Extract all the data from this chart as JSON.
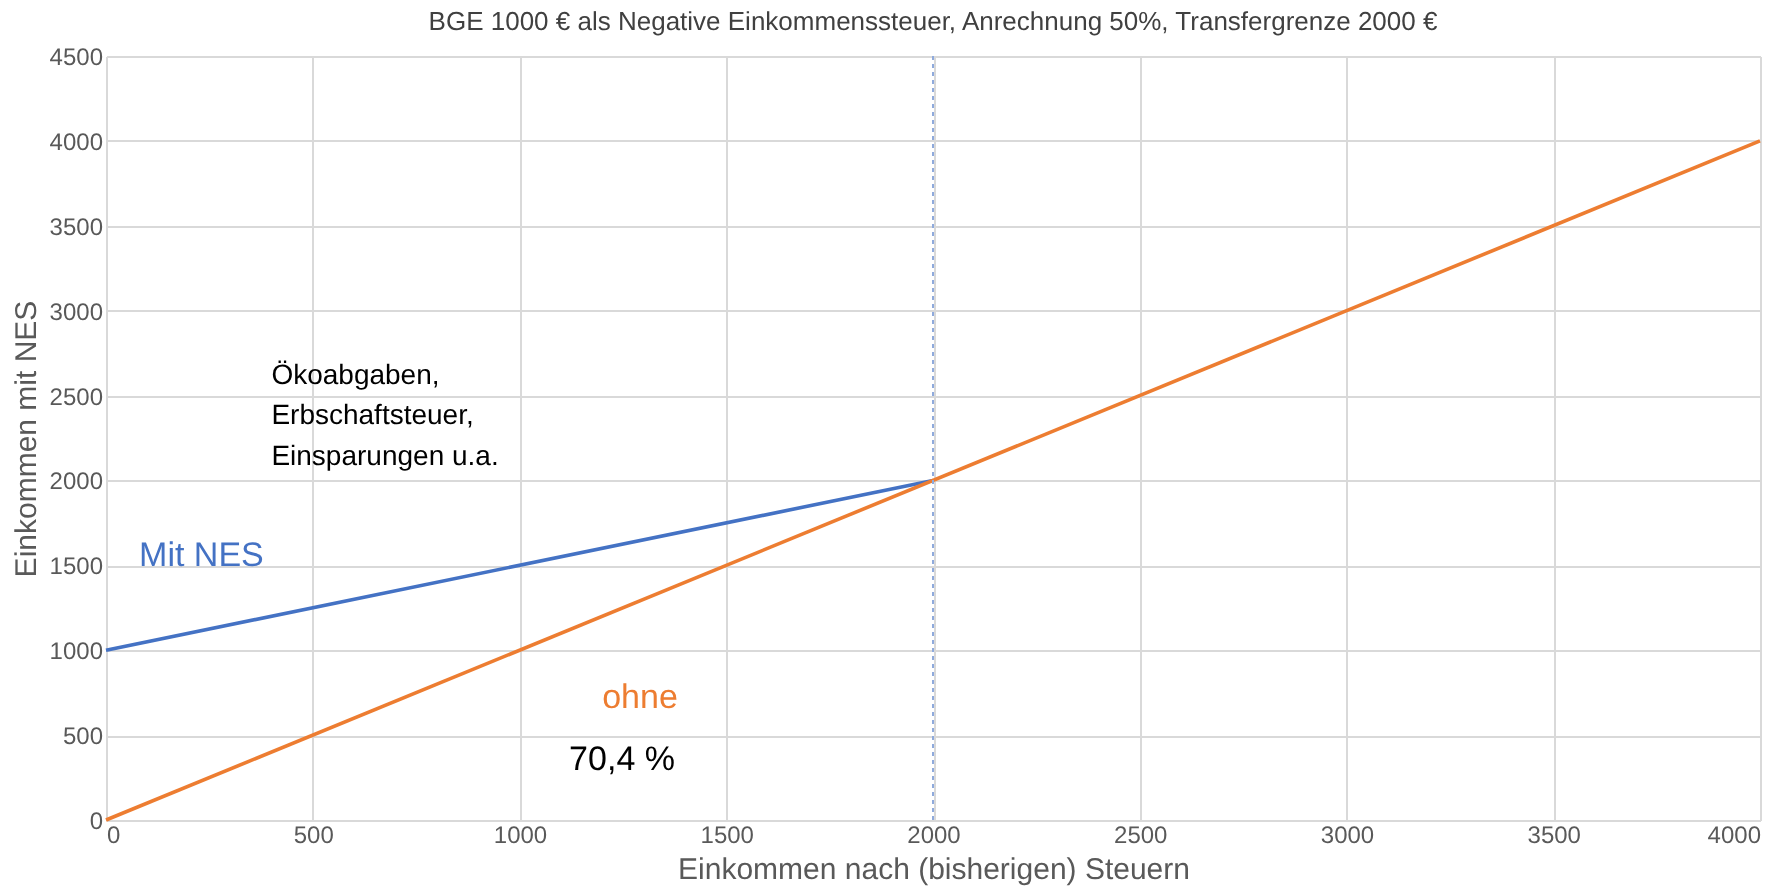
{
  "chart_data": {
    "type": "line",
    "title": "BGE 1000 € als Negative Einkommenssteuer,  Anrechnung 50%, Transfergrenze  2000 €",
    "xlabel": "Einkommen nach (bisherigen) Steuern",
    "ylabel": "Einkommen mit NES",
    "series": [
      {
        "name": "Mit NES",
        "color": "#4472c4",
        "x": [
          0,
          2000
        ],
        "values": [
          1000,
          2000
        ]
      },
      {
        "name": "ohne",
        "color": "#ed7d31",
        "x": [
          0,
          4000
        ],
        "values": [
          0,
          4000
        ]
      }
    ],
    "xlim": [
      0,
      4000
    ],
    "xticks": [
      0,
      500,
      1000,
      1500,
      2000,
      2500,
      3000,
      3500,
      4000
    ],
    "ylim": [
      0,
      4500
    ],
    "yticks": [
      0,
      500,
      1000,
      1500,
      2000,
      2500,
      3000,
      3500,
      4000,
      4500
    ],
    "ref_lines": [
      {
        "axis": "x",
        "value": 2000,
        "color": "#8faadc",
        "line_style": "dotted"
      }
    ],
    "annotations": [
      "Ökoabgaben,\nErbschaftsteuer,\nEinsparungen u.a.",
      "70,4 %"
    ],
    "grid": true,
    "legend": false,
    "marker": "none",
    "line_style": "solid"
  }
}
